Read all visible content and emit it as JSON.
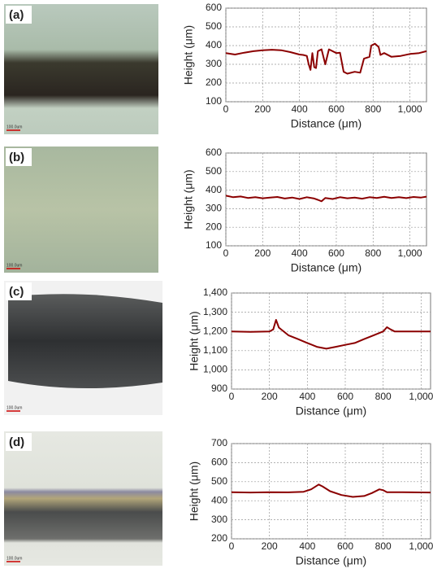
{
  "chart_data": [
    {
      "type": "line",
      "panel_label": "(a)",
      "scale_bar": "100.0um",
      "xlabel": "Distance (μm)",
      "ylabel": "Height (μm)",
      "color": "#8b0000",
      "grid": true,
      "xlim": [
        0,
        1090
      ],
      "ylim": [
        100,
        600
      ],
      "xticks": [
        0,
        200,
        400,
        600,
        800,
        {
          "value": 1000,
          "label": "1,000"
        }
      ],
      "yticks": [
        100,
        200,
        300,
        400,
        500,
        600
      ],
      "x": [
        0,
        50,
        100,
        150,
        200,
        250,
        300,
        350,
        400,
        420,
        440,
        450,
        460,
        470,
        480,
        490,
        500,
        520,
        540,
        560,
        580,
        600,
        620,
        640,
        660,
        700,
        730,
        750,
        780,
        790,
        810,
        830,
        840,
        860,
        900,
        950,
        1000,
        1050,
        1090
      ],
      "values": [
        360,
        352,
        362,
        370,
        375,
        378,
        375,
        365,
        352,
        350,
        345,
        300,
        270,
        360,
        285,
        280,
        370,
        380,
        300,
        380,
        370,
        360,
        362,
        260,
        250,
        260,
        255,
        330,
        340,
        400,
        410,
        392,
        350,
        360,
        340,
        345,
        355,
        360,
        370
      ]
    },
    {
      "type": "line",
      "panel_label": "(b)",
      "scale_bar": "100.0um",
      "xlabel": "Distance (μm)",
      "ylabel": "Height (μm)",
      "color": "#8b0000",
      "grid": true,
      "xlim": [
        0,
        1090
      ],
      "ylim": [
        100,
        600
      ],
      "xticks": [
        0,
        200,
        400,
        600,
        800,
        {
          "value": 1000,
          "label": "1,000"
        }
      ],
      "yticks": [
        100,
        200,
        300,
        400,
        500,
        600
      ],
      "x": [
        0,
        40,
        80,
        120,
        160,
        200,
        240,
        280,
        320,
        360,
        400,
        440,
        480,
        500,
        520,
        540,
        580,
        620,
        660,
        700,
        740,
        780,
        820,
        860,
        900,
        940,
        980,
        1020,
        1060,
        1090
      ],
      "values": [
        370,
        362,
        366,
        358,
        362,
        356,
        360,
        363,
        355,
        360,
        352,
        362,
        355,
        348,
        340,
        358,
        352,
        362,
        356,
        360,
        354,
        362,
        358,
        364,
        358,
        362,
        357,
        363,
        360,
        365
      ]
    },
    {
      "type": "line",
      "panel_label": "(c)",
      "scale_bar": "100.0um",
      "xlabel": "Distance (μm)",
      "ylabel": "Height (μm)",
      "color": "#8b0000",
      "grid": true,
      "xlim": [
        0,
        1050
      ],
      "ylim": [
        900,
        1400
      ],
      "xticks": [
        0,
        200,
        400,
        600,
        800,
        {
          "value": 1000,
          "label": "1,000"
        }
      ],
      "yticks": [
        900,
        {
          "value": 1000,
          "label": "1,000"
        },
        {
          "value": 1100,
          "label": "1,100"
        },
        {
          "value": 1200,
          "label": "1,200"
        },
        {
          "value": 1300,
          "label": "1,300"
        },
        {
          "value": 1400,
          "label": "1,400"
        }
      ],
      "x": [
        0,
        100,
        200,
        220,
        235,
        250,
        300,
        350,
        400,
        450,
        500,
        550,
        600,
        650,
        700,
        750,
        800,
        820,
        840,
        860,
        950,
        1050
      ],
      "values": [
        1200,
        1198,
        1200,
        1210,
        1260,
        1220,
        1180,
        1160,
        1140,
        1120,
        1110,
        1120,
        1130,
        1140,
        1160,
        1180,
        1200,
        1222,
        1210,
        1200,
        1200,
        1200
      ]
    },
    {
      "type": "line",
      "panel_label": "(d)",
      "scale_bar": "100.0um",
      "xlabel": "Distance (μm)",
      "ylabel": "Height (μm)",
      "color": "#8b0000",
      "grid": true,
      "xlim": [
        0,
        1050
      ],
      "ylim": [
        200,
        700
      ],
      "xticks": [
        0,
        200,
        400,
        600,
        800,
        {
          "value": 1000,
          "label": "1,000"
        }
      ],
      "yticks": [
        200,
        300,
        400,
        500,
        600,
        700
      ],
      "x": [
        0,
        100,
        200,
        300,
        380,
        420,
        460,
        480,
        520,
        580,
        640,
        700,
        740,
        780,
        800,
        820,
        900,
        1050
      ],
      "values": [
        445,
        443,
        445,
        444,
        447,
        460,
        485,
        475,
        450,
        430,
        420,
        425,
        440,
        460,
        455,
        445,
        445,
        443
      ]
    }
  ]
}
